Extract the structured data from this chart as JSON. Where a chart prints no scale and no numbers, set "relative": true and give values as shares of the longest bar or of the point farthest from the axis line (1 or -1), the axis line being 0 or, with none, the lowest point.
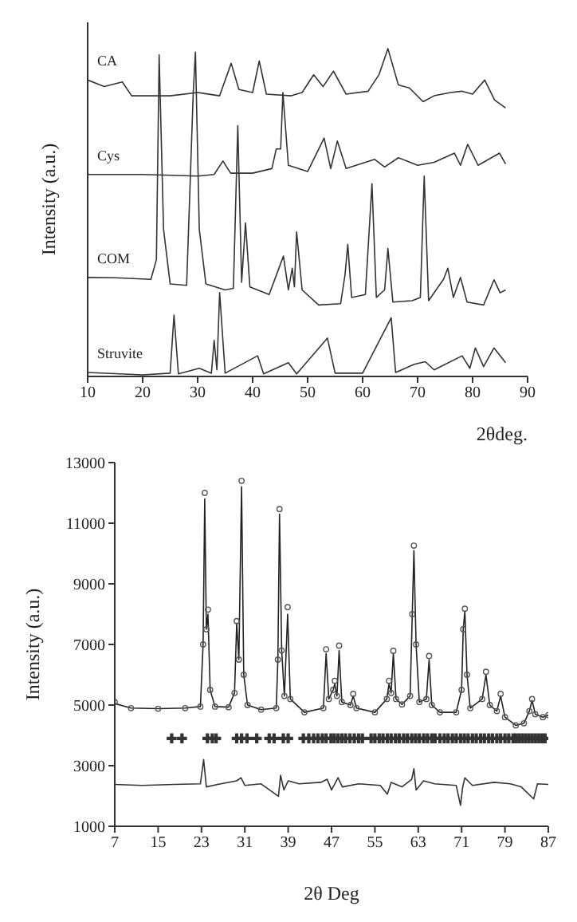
{
  "chart_data": [
    {
      "type": "line",
      "xlabel": "2θdeg.",
      "ylabel": "Intensity (a.u.)",
      "relative": true,
      "xlim": [
        10,
        90
      ],
      "xticks": [
        10,
        20,
        30,
        40,
        50,
        60,
        70,
        80,
        90
      ],
      "tick_labels": "x",
      "grid": false,
      "legend": false,
      "series": [
        {
          "name": "CA",
          "color": "#333333",
          "x": [
            10,
            13,
            16.3,
            18,
            25,
            30,
            34,
            36.1,
            37.5,
            40,
            41.2,
            42.5,
            47,
            49,
            51.1,
            52.8,
            54.7,
            57,
            61,
            63,
            64.6,
            66.5,
            68.5,
            71,
            73,
            76,
            78,
            80,
            82.2,
            84,
            86
          ],
          "values": [
            0.904,
            0.884,
            0.898,
            0.856,
            0.856,
            0.866,
            0.856,
            0.955,
            0.875,
            0.866,
            0.962,
            0.861,
            0.856,
            0.866,
            0.92,
            0.884,
            0.931,
            0.861,
            0.87,
            0.921,
            1,
            0.889,
            0.88,
            0.838,
            0.856,
            0.866,
            0.87,
            0.861,
            0.904,
            0.843,
            0.819
          ]
        },
        {
          "name": "Cys",
          "color": "#333333",
          "x": [
            10,
            20,
            30,
            33,
            34.6,
            36,
            40,
            43.5,
            44.3,
            45.1,
            45.5,
            46.5,
            50,
            53,
            54.2,
            55.4,
            57,
            62.2,
            64,
            66.5,
            70,
            73,
            76.7,
            77.8,
            79.1,
            81,
            84.9,
            86
          ],
          "values": [
            0.616,
            0.616,
            0.611,
            0.616,
            0.657,
            0.62,
            0.62,
            0.634,
            0.694,
            0.694,
            0.866,
            0.644,
            0.625,
            0.727,
            0.634,
            0.718,
            0.634,
            0.662,
            0.639,
            0.667,
            0.644,
            0.653,
            0.681,
            0.644,
            0.708,
            0.644,
            0.681,
            0.648
          ]
        },
        {
          "name": "COM",
          "color": "#333333",
          "x": [
            10,
            15,
            21.5,
            22.5,
            23,
            23.8,
            25,
            28,
            29.2,
            29.6,
            30.3,
            31.5,
            35,
            36.5,
            37.3,
            38,
            38.7,
            39.5,
            43,
            45.6,
            46.5,
            47.2,
            47.6,
            48,
            49,
            52,
            56,
            56.8,
            57.3,
            58,
            60.5,
            61.7,
            62.5,
            64,
            64.6,
            65.5,
            69,
            70.5,
            71.2,
            72,
            74.7,
            75.5,
            76.5,
            77.8,
            79,
            82,
            83.9,
            85,
            86
          ],
          "values": [
            0.302,
            0.301,
            0.296,
            0.356,
            0.981,
            0.449,
            0.282,
            0.278,
            0.866,
            0.989,
            0.449,
            0.282,
            0.264,
            0.269,
            0.765,
            0.287,
            0.468,
            0.273,
            0.25,
            0.367,
            0.264,
            0.33,
            0.273,
            0.441,
            0.264,
            0.218,
            0.222,
            0.31,
            0.403,
            0.241,
            0.25,
            0.588,
            0.241,
            0.264,
            0.39,
            0.227,
            0.231,
            0.241,
            0.611,
            0.231,
            0.296,
            0.33,
            0.241,
            0.302,
            0.227,
            0.218,
            0.295,
            0.255,
            0.264
          ]
        },
        {
          "name": "Struvite",
          "color": "#333333",
          "x": [
            10,
            20,
            25,
            25.7,
            26.5,
            30.3,
            32.5,
            33,
            33.5,
            34,
            35,
            40.9,
            42,
            46.5,
            48,
            53.6,
            55,
            60,
            65.2,
            66,
            69.4,
            71.4,
            73,
            78.1,
            79.5,
            80.5,
            82,
            83.9,
            86
          ],
          "values": [
            0.012,
            0.005,
            0.01,
            0.187,
            0.008,
            0.025,
            0.01,
            0.11,
            0.02,
            0.256,
            0.01,
            0.063,
            0.008,
            0.042,
            0.008,
            0.117,
            0.01,
            0.01,
            0.179,
            0.012,
            0.037,
            0.045,
            0.02,
            0.063,
            0.025,
            0.087,
            0.03,
            0.087,
            0.042
          ]
        }
      ]
    },
    {
      "type": "line",
      "xlabel": "2θ Deg",
      "ylabel": "Intensity (a.u.)",
      "xlim": [
        7,
        87
      ],
      "xticks": [
        7,
        15,
        23,
        31,
        39,
        47,
        55,
        63,
        71,
        79,
        87
      ],
      "ylim": [
        1000,
        13000
      ],
      "yticks": [
        1000,
        3000,
        5000,
        7000,
        9000,
        11000,
        13000
      ],
      "grid": false,
      "legend": false,
      "series": [
        {
          "type": "scatter",
          "marker": "circle",
          "color": "#555555",
          "x": [
            7,
            10,
            15,
            20,
            22.8,
            23.3,
            23.6,
            23.9,
            24.2,
            24.6,
            25.5,
            28,
            29.1,
            29.5,
            29.9,
            30.4,
            30.8,
            31.5,
            34,
            36.8,
            37.1,
            37.4,
            37.8,
            38.3,
            38.9,
            39.4,
            42,
            45.5,
            46,
            46.5,
            47.3,
            47.6,
            48,
            48.4,
            48.9,
            50.5,
            51,
            51.6,
            55,
            57.2,
            57.6,
            58,
            58.4,
            58.9,
            60,
            61.5,
            61.9,
            62.2,
            62.6,
            63.2,
            64.5,
            65,
            65.5,
            67,
            70,
            71,
            71.3,
            71.6,
            72,
            72.6,
            74.8,
            75.5,
            76.2,
            77.5,
            78.2,
            79,
            81,
            82.5,
            83.5,
            84,
            84.6,
            86,
            87
          ],
          "values": [
            5100,
            4900,
            4880,
            4900,
            4950,
            7000,
            12000,
            7500,
            8150,
            5500,
            4950,
            4930,
            5400,
            7770,
            6500,
            12400,
            6000,
            5000,
            4850,
            4900,
            6500,
            11470,
            6800,
            5300,
            8230,
            5200,
            4760,
            4900,
            6840,
            5200,
            5500,
            5800,
            5300,
            6960,
            5100,
            5000,
            5370,
            4900,
            4760,
            5200,
            5800,
            5400,
            6790,
            5200,
            5020,
            5300,
            8000,
            10260,
            7000,
            5100,
            5200,
            6620,
            5000,
            4760,
            4760,
            5500,
            7500,
            8180,
            6000,
            4900,
            5200,
            6100,
            5000,
            4800,
            5370,
            4600,
            4330,
            4400,
            4800,
            5200,
            4700,
            4600,
            4670
          ]
        },
        {
          "color": "#222222",
          "x": [
            7,
            10,
            15,
            20,
            22.8,
            23.3,
            23.6,
            23.9,
            24.2,
            24.6,
            25.5,
            28,
            29.1,
            29.5,
            29.9,
            30.4,
            30.8,
            31.5,
            34,
            36.8,
            37.1,
            37.4,
            37.8,
            38.3,
            38.9,
            39.4,
            42,
            45.5,
            46,
            46.5,
            47.3,
            47.6,
            48,
            48.4,
            48.9,
            50.5,
            51,
            51.6,
            55,
            57.2,
            57.6,
            58,
            58.4,
            58.9,
            60,
            61.5,
            61.9,
            62.2,
            62.6,
            63.2,
            64.5,
            65,
            65.5,
            67,
            70,
            71,
            71.3,
            71.6,
            72,
            72.6,
            74.8,
            75.5,
            76.2,
            77.5,
            78.2,
            79,
            81,
            82.5,
            83.5,
            84,
            84.6,
            86,
            87
          ],
          "values": [
            5050,
            4900,
            4880,
            4900,
            4950,
            7000,
            11800,
            7500,
            8000,
            5500,
            4950,
            4930,
            5400,
            7700,
            6500,
            12200,
            6000,
            5000,
            4850,
            4900,
            6500,
            11300,
            6800,
            5300,
            8000,
            5200,
            4760,
            4900,
            6700,
            5200,
            5500,
            5700,
            5300,
            6800,
            5100,
            5000,
            5300,
            4900,
            4760,
            5200,
            5700,
            5400,
            6700,
            5200,
            5020,
            5300,
            8000,
            10100,
            7000,
            5100,
            5200,
            6500,
            5000,
            4760,
            4760,
            5500,
            7500,
            8100,
            6000,
            4900,
            5200,
            6000,
            5000,
            4800,
            5300,
            4600,
            4330,
            4400,
            4800,
            5150,
            4700,
            4600,
            4670
          ]
        },
        {
          "type": "scatter",
          "marker": "cross",
          "color": "#333333",
          "x": [
            17.5,
            19.4,
            24.1,
            25,
            25.7,
            29.5,
            30.4,
            31.4,
            33.2,
            35.5,
            36.4,
            38.1,
            39,
            41.8,
            42.8,
            43.7,
            44.5,
            45.3,
            46,
            46.9,
            47.5,
            48.2,
            48.9,
            49.6,
            50.4,
            51.2,
            52,
            52.7,
            54.3,
            55,
            55.8,
            56.5,
            57.3,
            58,
            58.8,
            59.5,
            60.3,
            61,
            61.8,
            62.5,
            63.2,
            64,
            64.7,
            65.5,
            66.1,
            67,
            67.8,
            68.5,
            69.3,
            70,
            70.8,
            71.5,
            72.2,
            73,
            73.7,
            74.5,
            75.2,
            76,
            76.7,
            77.5,
            78.2,
            79,
            79.7,
            80.5,
            81,
            81.6,
            82.2,
            82.8,
            83.4,
            84,
            84.6,
            85.2,
            85.8,
            86.4
          ],
          "values": [
            3900,
            3900,
            3900,
            3900,
            3900,
            3900,
            3900,
            3900,
            3900,
            3900,
            3900,
            3900,
            3900,
            3900,
            3900,
            3900,
            3900,
            3900,
            3900,
            3900,
            3900,
            3900,
            3900,
            3900,
            3900,
            3900,
            3900,
            3900,
            3900,
            3900,
            3900,
            3900,
            3900,
            3900,
            3900,
            3900,
            3900,
            3900,
            3900,
            3900,
            3900,
            3900,
            3900,
            3900,
            3900,
            3900,
            3900,
            3900,
            3900,
            3900,
            3900,
            3900,
            3900,
            3900,
            3900,
            3900,
            3900,
            3900,
            3900,
            3900,
            3900,
            3900,
            3900,
            3900,
            3900,
            3900,
            3900,
            3900,
            3900,
            3900,
            3900,
            3900,
            3900,
            3900
          ]
        },
        {
          "color": "#333333",
          "x": [
            7,
            12,
            18,
            22.8,
            23.4,
            23.9,
            26,
            29.5,
            30.3,
            31,
            34,
            37.2,
            37.6,
            38.2,
            39,
            41,
            45,
            46.2,
            47,
            48.2,
            49,
            52,
            56,
            57.3,
            58,
            60,
            61.8,
            62.2,
            62.6,
            64,
            66,
            70,
            70.8,
            71.2,
            71.6,
            73,
            77,
            80,
            82,
            84.3,
            85,
            87
          ],
          "values": [
            2380,
            2350,
            2380,
            2400,
            3200,
            2300,
            2380,
            2500,
            2600,
            2350,
            2400,
            1990,
            2680,
            2200,
            2500,
            2400,
            2450,
            2550,
            2200,
            2600,
            2300,
            2400,
            2350,
            2060,
            2450,
            2300,
            2550,
            2900,
            2200,
            2500,
            2400,
            2350,
            1690,
            2300,
            2600,
            2350,
            2450,
            2400,
            2300,
            1900,
            2400,
            2380
          ]
        }
      ]
    }
  ]
}
